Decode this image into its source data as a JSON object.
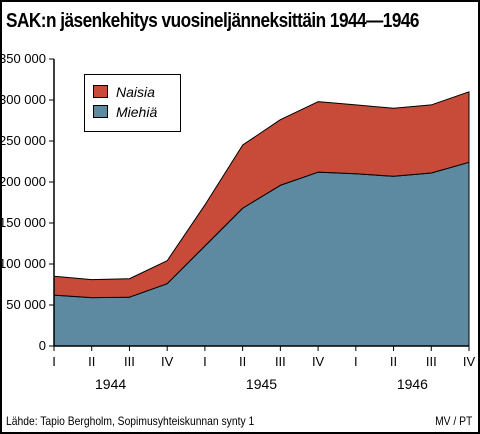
{
  "title": "SAK:n jäsenkehitys vuosineljänneksittäin 1944—1946",
  "source": "Lähde: Tapio Bergholm, Sopimusyhteiskunnan synty 1",
  "credit": "MV / PT",
  "colors": {
    "naisia": "#c84b3a",
    "miehia": "#5e8aa1",
    "axis": "#000000"
  },
  "chart_data": {
    "type": "area",
    "stacked": true,
    "x": [
      "I",
      "II",
      "III",
      "IV",
      "I",
      "II",
      "III",
      "IV",
      "I",
      "II",
      "III",
      "IV"
    ],
    "groups": [
      {
        "label": "1944",
        "quarters": [
          "I",
          "II",
          "III",
          "IV"
        ]
      },
      {
        "label": "1945",
        "quarters": [
          "I",
          "II",
          "III",
          "IV"
        ]
      },
      {
        "label": "1946",
        "quarters": [
          "I",
          "II",
          "III",
          "IV"
        ]
      }
    ],
    "series": [
      {
        "name": "Miehiä",
        "color": "#5e8aa1",
        "values": [
          62000,
          59000,
          59500,
          76000,
          122000,
          168000,
          196000,
          212000,
          210000,
          207000,
          211000,
          224000
        ]
      },
      {
        "name": "Naisia",
        "color": "#c84b3a",
        "values": [
          23000,
          22000,
          22500,
          28000,
          50000,
          77000,
          80000,
          86000,
          84000,
          83000,
          83000,
          86000
        ]
      }
    ],
    "y_ticks": [
      0,
      50000,
      100000,
      150000,
      200000,
      250000,
      300000,
      350000
    ],
    "y_tick_labels": [
      "0",
      "50 000",
      "100 000",
      "150 000",
      "200 000",
      "250 000",
      "300 000",
      "350 000"
    ],
    "ylim": [
      0,
      350000
    ],
    "grid": false,
    "legend_position": "top-left"
  }
}
